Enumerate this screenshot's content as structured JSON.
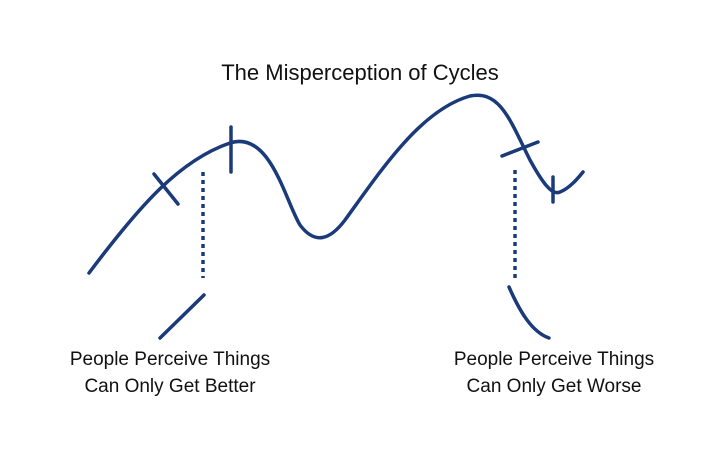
{
  "title": "The Misperception of Cycles",
  "captions": {
    "left": {
      "line1": "People Perceive Things",
      "line2": "Can Only Get Better"
    },
    "right": {
      "line1": "People Perceive Things",
      "line2": "Can Only Get Worse"
    }
  },
  "colors": {
    "line": "#1b3a7a",
    "text": "#111111",
    "background": "#ffffff"
  }
}
